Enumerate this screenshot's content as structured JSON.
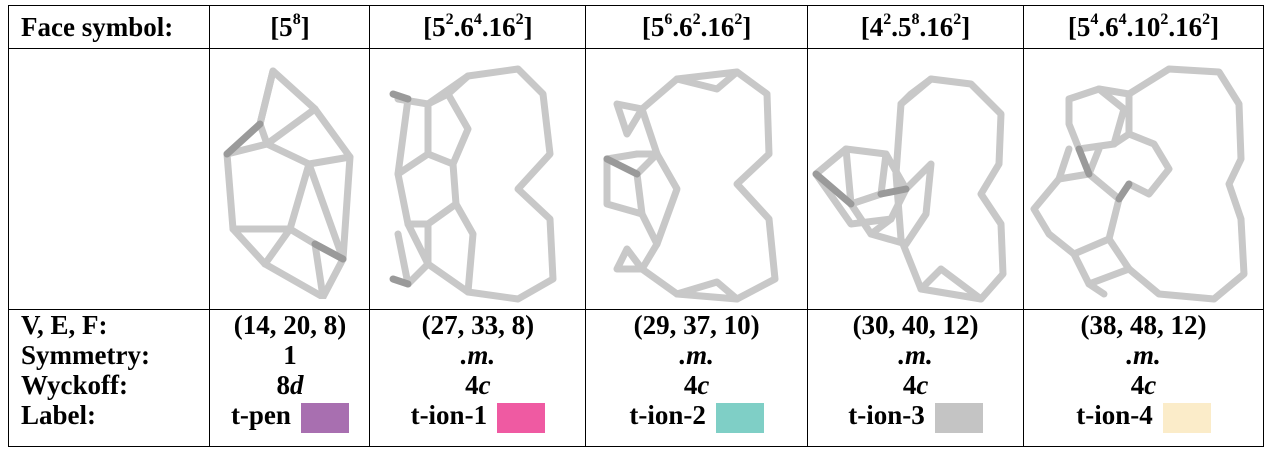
{
  "row_labels": {
    "face_symbol": "Face symbol:",
    "vef": "V, E, F:",
    "symmetry": "Symmetry:",
    "wyckoff": "Wyckoff:",
    "label": "Label:"
  },
  "tiles": [
    {
      "face_symbol": {
        "parts": [
          {
            "base": "[5",
            "sup": "8"
          },
          {
            "base": "]",
            "sup": ""
          }
        ]
      },
      "vef": "(14, 20, 8)",
      "symmetry": "1",
      "wyckoff": {
        "num": "8",
        "letter": "d"
      },
      "label": "t-pen",
      "color": "#a86fb0"
    },
    {
      "face_symbol": {
        "parts": [
          {
            "base": "[5",
            "sup": "2"
          },
          {
            "base": ".6",
            "sup": "4"
          },
          {
            "base": ".16",
            "sup": "2"
          },
          {
            "base": "]",
            "sup": ""
          }
        ]
      },
      "vef": "(27, 33, 8)",
      "symmetry": ".m.",
      "wyckoff": {
        "num": "4",
        "letter": "c"
      },
      "label": "t-ion-1",
      "color": "#ef5aa2"
    },
    {
      "face_symbol": {
        "parts": [
          {
            "base": "[5",
            "sup": "6"
          },
          {
            "base": ".6",
            "sup": "2"
          },
          {
            "base": ".16",
            "sup": "2"
          },
          {
            "base": "]",
            "sup": ""
          }
        ]
      },
      "vef": "(29, 37, 10)",
      "symmetry": ".m.",
      "wyckoff": {
        "num": "4",
        "letter": "c"
      },
      "label": "t-ion-2",
      "color": "#7fcfc6"
    },
    {
      "face_symbol": {
        "parts": [
          {
            "base": "[4",
            "sup": "2"
          },
          {
            "base": ".5",
            "sup": "8"
          },
          {
            "base": ".16",
            "sup": "2"
          },
          {
            "base": "]",
            "sup": ""
          }
        ]
      },
      "vef": "(30, 40, 12)",
      "symmetry": ".m.",
      "wyckoff": {
        "num": "4",
        "letter": "c"
      },
      "label": "t-ion-3",
      "color": "#c4c4c4"
    },
    {
      "face_symbol": {
        "parts": [
          {
            "base": "[5",
            "sup": "4"
          },
          {
            "base": ".6",
            "sup": "4"
          },
          {
            "base": ".10",
            "sup": "2"
          },
          {
            "base": ".16",
            "sup": "2"
          },
          {
            "base": "]",
            "sup": ""
          }
        ]
      },
      "vef": "(38, 48, 12)",
      "symmetry": ".m.",
      "wyckoff": {
        "num": "4",
        "letter": "c"
      },
      "label": "t-ion-4",
      "color": "#fbecc9"
    }
  ]
}
